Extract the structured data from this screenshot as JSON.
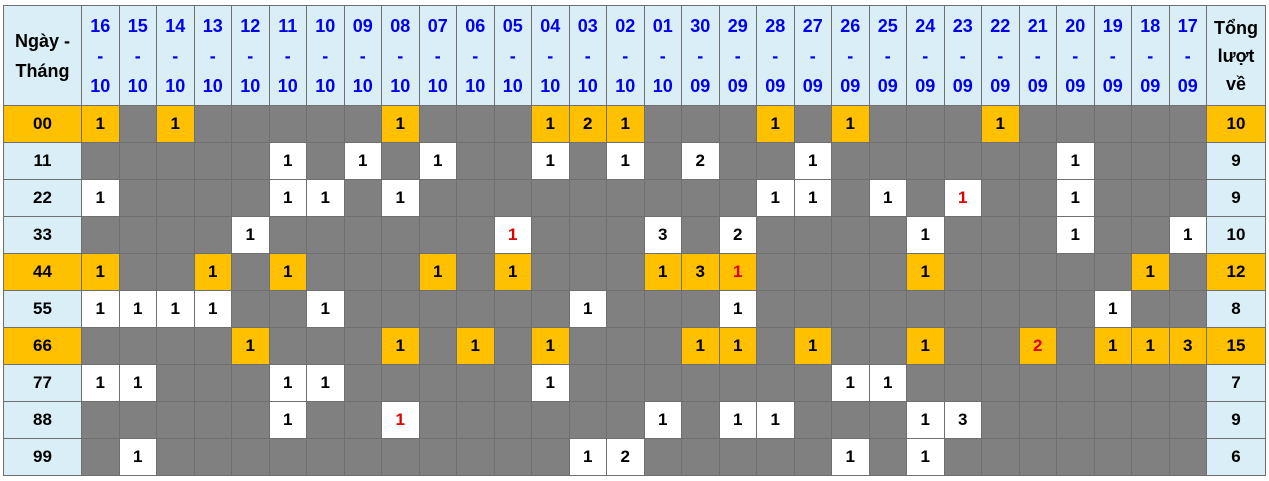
{
  "header": {
    "first": "Ngày - Tháng",
    "total": "Tổng lượt về",
    "dates": [
      [
        "16",
        "10"
      ],
      [
        "15",
        "10"
      ],
      [
        "14",
        "10"
      ],
      [
        "13",
        "10"
      ],
      [
        "12",
        "10"
      ],
      [
        "11",
        "10"
      ],
      [
        "10",
        "10"
      ],
      [
        "09",
        "10"
      ],
      [
        "08",
        "10"
      ],
      [
        "07",
        "10"
      ],
      [
        "06",
        "10"
      ],
      [
        "05",
        "10"
      ],
      [
        "04",
        "10"
      ],
      [
        "03",
        "10"
      ],
      [
        "02",
        "10"
      ],
      [
        "01",
        "10"
      ],
      [
        "30",
        "09"
      ],
      [
        "29",
        "09"
      ],
      [
        "28",
        "09"
      ],
      [
        "27",
        "09"
      ],
      [
        "26",
        "09"
      ],
      [
        "25",
        "09"
      ],
      [
        "24",
        "09"
      ],
      [
        "23",
        "09"
      ],
      [
        "22",
        "09"
      ],
      [
        "21",
        "09"
      ],
      [
        "20",
        "09"
      ],
      [
        "19",
        "09"
      ],
      [
        "18",
        "09"
      ],
      [
        "17",
        "09"
      ]
    ]
  },
  "colors": {
    "header_bg": "#daeef8",
    "highlight": "#ffc000",
    "empty": "#808080",
    "date_text": "#0000ee",
    "red_text": "#e00000"
  },
  "rows": [
    {
      "label": "00",
      "highlight": true,
      "total": "10",
      "cells": [
        "1",
        "",
        "1",
        "",
        "",
        "",
        "",
        "",
        "1",
        "",
        "",
        "",
        "1",
        "2",
        "1",
        "",
        "",
        "",
        "1",
        "",
        "1",
        "",
        "",
        "",
        "1",
        "",
        "",
        "",
        "",
        ""
      ],
      "red": []
    },
    {
      "label": "11",
      "highlight": false,
      "total": "9",
      "cells": [
        "",
        "",
        "",
        "",
        "",
        "1",
        "",
        "1",
        "",
        "1",
        "",
        "",
        "1",
        "",
        "1",
        "",
        "2",
        "",
        "",
        "1",
        "",
        "",
        "",
        "",
        "",
        "",
        "1",
        "",
        "",
        ""
      ],
      "red": []
    },
    {
      "label": "22",
      "highlight": false,
      "total": "9",
      "cells": [
        "1",
        "",
        "",
        "",
        "",
        "1",
        "1",
        "",
        "1",
        "",
        "",
        "",
        "",
        "",
        "",
        "",
        "",
        "",
        "1",
        "1",
        "",
        "1",
        "",
        "1",
        "",
        "",
        "1",
        "",
        "",
        ""
      ],
      "red": [
        23
      ]
    },
    {
      "label": "33",
      "highlight": false,
      "total": "10",
      "cells": [
        "",
        "",
        "",
        "",
        "1",
        "",
        "",
        "",
        "",
        "",
        "",
        "1",
        "",
        "",
        "",
        "3",
        "",
        "2",
        "",
        "",
        "",
        "",
        "1",
        "",
        "",
        "",
        "1",
        "",
        "",
        "1"
      ],
      "red": [
        11
      ]
    },
    {
      "label": "44",
      "highlight": true,
      "total": "12",
      "cells": [
        "1",
        "",
        "",
        "1",
        "",
        "1",
        "",
        "",
        "",
        "1",
        "",
        "1",
        "",
        "",
        "",
        "1",
        "3",
        "1",
        "",
        "",
        "",
        "",
        "1",
        "",
        "",
        "",
        "",
        "",
        "1",
        ""
      ],
      "red": [
        17
      ]
    },
    {
      "label": "55",
      "highlight": false,
      "total": "8",
      "cells": [
        "1",
        "1",
        "1",
        "1",
        "",
        "",
        "1",
        "",
        "",
        "",
        "",
        "",
        "",
        "1",
        "",
        "",
        "",
        "1",
        "",
        "",
        "",
        "",
        "",
        "",
        "",
        "",
        "",
        "1",
        "",
        ""
      ],
      "red": []
    },
    {
      "label": "66",
      "highlight": true,
      "total": "15",
      "cells": [
        "",
        "",
        "",
        "",
        "1",
        "",
        "",
        "",
        "1",
        "",
        "1",
        "",
        "1",
        "",
        "",
        "",
        "1",
        "1",
        "",
        "1",
        "",
        "",
        "1",
        "",
        "",
        "2",
        "",
        "1",
        "1",
        "3"
      ],
      "red": [
        25
      ]
    },
    {
      "label": "77",
      "highlight": false,
      "total": "7",
      "cells": [
        "1",
        "1",
        "",
        "",
        "",
        "1",
        "1",
        "",
        "",
        "",
        "",
        "",
        "1",
        "",
        "",
        "",
        "",
        "",
        "",
        "",
        "1",
        "1",
        "",
        "",
        "",
        "",
        "",
        "",
        "",
        ""
      ],
      "red": []
    },
    {
      "label": "88",
      "highlight": false,
      "total": "9",
      "cells": [
        "",
        "",
        "",
        "",
        "",
        "1",
        "",
        "",
        "1",
        "",
        "",
        "",
        "",
        "",
        "",
        "1",
        "",
        "1",
        "1",
        "",
        "",
        "",
        "1",
        "3",
        "",
        "",
        "",
        "",
        "",
        ""
      ],
      "red": [
        8
      ]
    },
    {
      "label": "99",
      "highlight": false,
      "total": "6",
      "cells": [
        "",
        "1",
        "",
        "",
        "",
        "",
        "",
        "",
        "",
        "",
        "",
        "",
        "",
        "1",
        "2",
        "",
        "",
        "",
        "",
        "",
        "1",
        "",
        "1",
        "",
        "",
        "",
        "",
        "",
        "",
        ""
      ],
      "red": []
    }
  ]
}
